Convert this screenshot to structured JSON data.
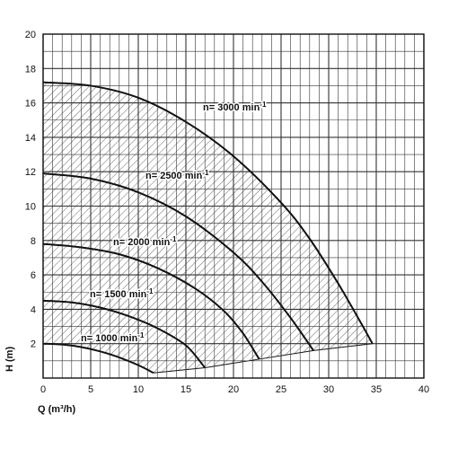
{
  "chart_data": {
    "type": "line",
    "title": "",
    "xlabel": "Q (m³/h)",
    "ylabel": "H (m)",
    "xlim": [
      0,
      40
    ],
    "ylim": [
      0,
      20
    ],
    "x_ticks": [
      0,
      5,
      10,
      15,
      20,
      25,
      30,
      35,
      40
    ],
    "y_ticks": [
      2,
      4,
      6,
      8,
      10,
      12,
      14,
      16,
      18,
      20
    ],
    "grid": true,
    "operating_region": "hatched",
    "colors": {
      "curve": "#111111",
      "grid": "#333333",
      "hatch": "#444444",
      "background": "#ffffff"
    },
    "series": [
      {
        "name": "n= 1000 min",
        "label_main": "n= 1000 min",
        "label_sup": "-1",
        "points": [
          [
            0,
            2.0
          ],
          [
            2,
            1.95
          ],
          [
            4,
            1.8
          ],
          [
            6,
            1.55
          ],
          [
            8,
            1.2
          ],
          [
            10,
            0.75
          ],
          [
            11.6,
            0.3
          ]
        ]
      },
      {
        "name": "n= 1500 min",
        "label_main": "n= 1500 min",
        "label_sup": "-1",
        "points": [
          [
            0,
            4.5
          ],
          [
            3,
            4.4
          ],
          [
            6,
            4.1
          ],
          [
            9,
            3.6
          ],
          [
            12,
            2.9
          ],
          [
            15,
            1.9
          ],
          [
            17.0,
            0.6
          ]
        ]
      },
      {
        "name": "n= 2000 min",
        "label_main": "n= 2000 min",
        "label_sup": "-1",
        "points": [
          [
            0,
            7.8
          ],
          [
            4,
            7.6
          ],
          [
            8,
            7.2
          ],
          [
            12,
            6.4
          ],
          [
            16,
            5.2
          ],
          [
            19,
            3.9
          ],
          [
            21,
            2.6
          ],
          [
            22.7,
            1.1
          ]
        ]
      },
      {
        "name": "n= 2500 min",
        "label_main": "n= 2500 min",
        "label_sup": "-1",
        "points": [
          [
            0,
            11.9
          ],
          [
            5,
            11.6
          ],
          [
            10,
            10.8
          ],
          [
            15,
            9.4
          ],
          [
            20,
            7.3
          ],
          [
            23,
            5.6
          ],
          [
            26,
            3.5
          ],
          [
            28.4,
            1.6
          ]
        ]
      },
      {
        "name": "n= 3000 min",
        "label_main": "n= 3000 min",
        "label_sup": "-1",
        "points": [
          [
            0,
            17.2
          ],
          [
            5,
            17.0
          ],
          [
            10,
            16.3
          ],
          [
            15,
            14.9
          ],
          [
            20,
            12.9
          ],
          [
            25,
            10.2
          ],
          [
            28,
            8.1
          ],
          [
            31,
            5.5
          ],
          [
            33.5,
            3.1
          ],
          [
            34.6,
            2.0
          ]
        ]
      }
    ],
    "lower_boundary": [
      [
        11.6,
        0.3
      ],
      [
        17.0,
        0.6
      ],
      [
        22.7,
        1.1
      ],
      [
        28.4,
        1.6
      ],
      [
        34.6,
        2.0
      ]
    ]
  }
}
